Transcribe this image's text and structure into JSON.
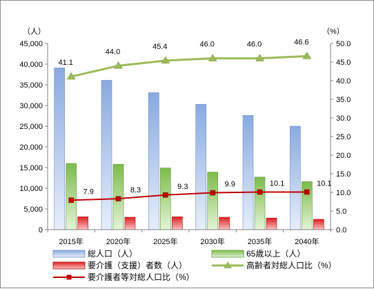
{
  "chart_data": {
    "type": "bar",
    "categories": [
      "2015年",
      "2020年",
      "2025年",
      "2030年",
      "2035年",
      "2040年"
    ],
    "left_axis": {
      "unit": "（人）",
      "min": 0,
      "max": 45000,
      "step": 5000,
      "tick_labels": [
        "0",
        "5,000",
        "10,000",
        "15,000",
        "20,000",
        "25,000",
        "30,000",
        "35,000",
        "40,000",
        "45,000"
      ]
    },
    "right_axis": {
      "unit": "（%）",
      "min": 0,
      "max": 50,
      "step": 5,
      "tick_labels": [
        "0.0",
        "5.0",
        "10.0",
        "15.0",
        "20.0",
        "25.0",
        "30.0",
        "35.0",
        "40.0",
        "45.0",
        "50.0"
      ]
    },
    "series": [
      {
        "name": "総人口（人）",
        "kind": "bar",
        "axis": "left",
        "color": "#9bb9e8",
        "values": [
          39100,
          36100,
          33100,
          30300,
          27600,
          25000
        ]
      },
      {
        "name": "65歳以上（人）",
        "kind": "bar",
        "axis": "left",
        "color": "#8fcb63",
        "values": [
          16000,
          15800,
          14900,
          13900,
          12700,
          11600
        ]
      },
      {
        "name": "要介護（支援）者数（人）",
        "kind": "bar",
        "axis": "left",
        "color": "#e83030",
        "values": [
          3100,
          3000,
          3100,
          3000,
          2800,
          2500
        ]
      },
      {
        "name": "高齢者対総人口比（%）",
        "kind": "line",
        "axis": "right",
        "color": "#9bbb59",
        "values": [
          41.1,
          44.0,
          45.4,
          46.0,
          46.0,
          46.6
        ],
        "labels": [
          "41.1",
          "44.0",
          "45.4",
          "46.0",
          "46.0",
          "46.6"
        ]
      },
      {
        "name": "要介護者等対総人口比（%）",
        "kind": "line",
        "axis": "right",
        "color": "#c00000",
        "values": [
          7.9,
          8.3,
          9.3,
          9.9,
          10.1,
          10.1
        ],
        "labels": [
          "7.9",
          "8.3",
          "9.3",
          "9.9",
          "10.1",
          "10.1"
        ]
      }
    ],
    "grid": false,
    "legend_position": "bottom"
  }
}
